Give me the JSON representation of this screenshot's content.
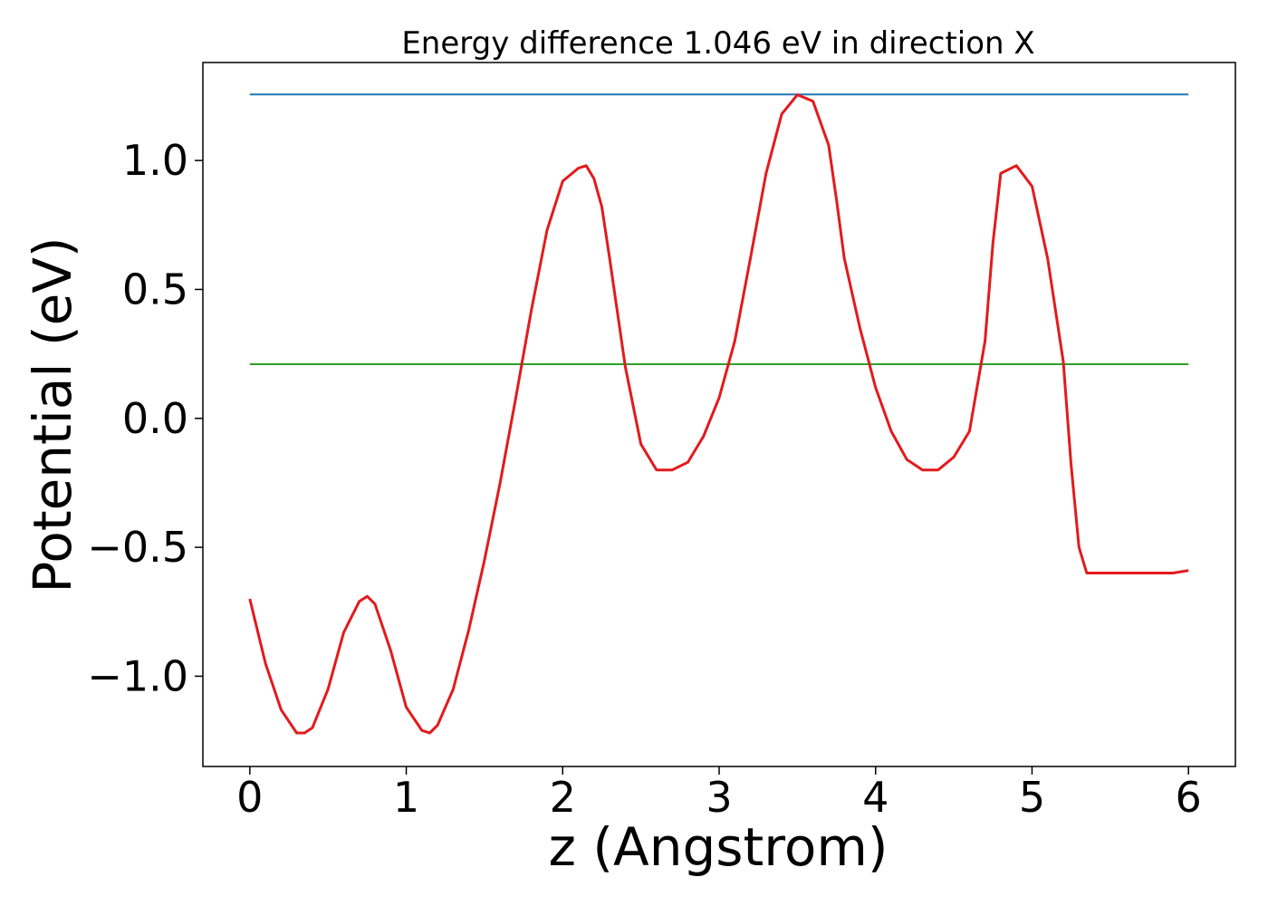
{
  "chart_data": {
    "type": "line",
    "title": "Energy difference 1.046 eV in direction X",
    "xlabel": "z (Angstrom)",
    "ylabel": "Potential (eV)",
    "xlim": [
      -0.3,
      6.3
    ],
    "ylim": [
      -1.35,
      1.38
    ],
    "x_ticks": [
      0,
      1,
      2,
      3,
      4,
      5,
      6
    ],
    "x_tick_labels": [
      "0",
      "1",
      "2",
      "3",
      "4",
      "5",
      "6"
    ],
    "y_ticks": [
      -1.0,
      -0.5,
      0.0,
      0.5,
      1.0
    ],
    "y_tick_labels": [
      "−1.0",
      "−0.5",
      "0.0",
      "0.5",
      "1.0"
    ],
    "grid": false,
    "series": [
      {
        "color": "#1f77b4",
        "x": [
          0,
          6
        ],
        "y": [
          1.256,
          1.256
        ]
      },
      {
        "color": "#2ca02c",
        "x": [
          0,
          6
        ],
        "y": [
          0.21,
          0.21
        ]
      },
      {
        "color": "#e31a1c",
        "x": [
          0,
          0.1,
          0.2,
          0.3,
          0.35,
          0.4,
          0.5,
          0.6,
          0.7,
          0.75,
          0.8,
          0.9,
          1.0,
          1.1,
          1.15,
          1.2,
          1.3,
          1.4,
          1.5,
          1.6,
          1.7,
          1.8,
          1.9,
          2.0,
          2.1,
          2.15,
          2.2,
          2.25,
          2.3,
          2.4,
          2.5,
          2.6,
          2.7,
          2.8,
          2.85,
          2.9,
          3.0,
          3.1,
          3.2,
          3.3,
          3.4,
          3.5,
          3.6,
          3.7,
          3.75,
          3.8,
          3.9,
          4.0,
          4.1,
          4.2,
          4.3,
          4.4,
          4.5,
          4.6,
          4.7,
          4.75,
          4.8,
          4.9,
          5.0,
          5.1,
          5.2,
          5.25,
          5.3,
          5.35,
          5.4,
          5.5,
          5.6,
          5.7,
          5.8,
          5.9,
          6.0
        ],
        "y": [
          -0.7,
          -0.95,
          -1.13,
          -1.22,
          -1.22,
          -1.2,
          -1.05,
          -0.83,
          -0.71,
          -0.69,
          -0.72,
          -0.9,
          -1.12,
          -1.21,
          -1.22,
          -1.19,
          -1.05,
          -0.82,
          -0.55,
          -0.25,
          0.08,
          0.42,
          0.73,
          0.92,
          0.97,
          0.98,
          0.93,
          0.82,
          0.62,
          0.2,
          -0.1,
          -0.2,
          -0.2,
          -0.17,
          -0.12,
          -0.07,
          0.08,
          0.3,
          0.62,
          0.95,
          1.18,
          1.255,
          1.23,
          1.06,
          0.85,
          0.62,
          0.35,
          0.12,
          -0.05,
          -0.16,
          -0.2,
          -0.2,
          -0.15,
          -0.05,
          0.3,
          0.68,
          0.95,
          0.98,
          0.9,
          0.62,
          0.22,
          -0.18,
          -0.5,
          -0.6,
          -0.6,
          -0.6,
          -0.6,
          -0.6,
          -0.6,
          -0.6,
          -0.59
        ]
      }
    ]
  }
}
